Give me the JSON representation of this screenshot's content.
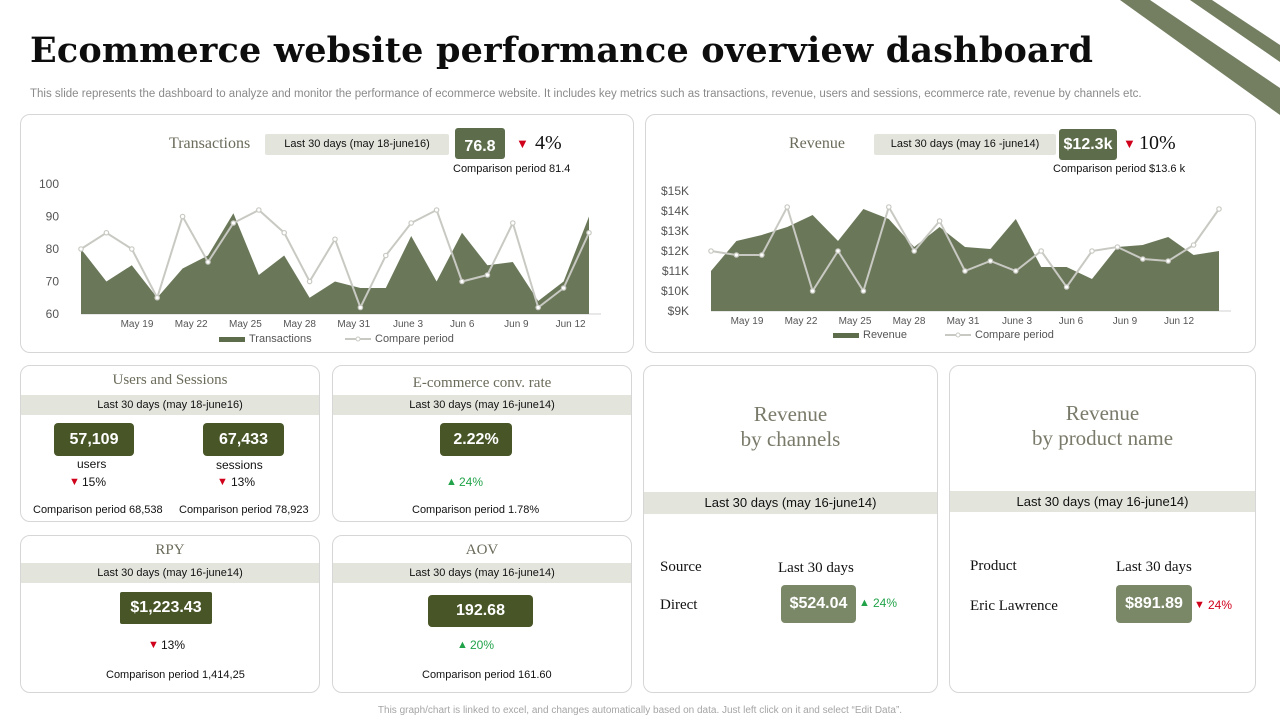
{
  "page": {
    "title": "Ecommerce website performance overview dashboard",
    "subtitle": "This slide represents the dashboard to analyze and monitor the performance of ecommerce website. It includes key metrics such as transactions, revenue, users and sessions, ecommerce rate, revenue by channels etc.",
    "footer": "This graph/chart is linked to excel, and changes automatically based on data. Just left click on it and select “Edit Data”."
  },
  "colors": {
    "accent": "#5d6d4b",
    "dark": "#475527",
    "compare": "#c9c9c3",
    "down": "#d0021b",
    "up": "#22a34a"
  },
  "transactions": {
    "title": "Transactions",
    "period": "Last 30 days (may 18-june16)",
    "value": "76.8",
    "change": "4%",
    "comparison": "Comparison period 81.4"
  },
  "revenue": {
    "title": "Revenue",
    "period": "Last 30 days (may 16 -june14)",
    "value": "$12.3k",
    "change": "10%",
    "comparison": "Comparison period $13.6 k"
  },
  "users_sessions": {
    "title": "Users and Sessions",
    "period": "Last 30 days (may 18-june16)",
    "users_value": "57,109",
    "users_label": "users",
    "users_change": "15%",
    "users_comparison": "Comparison period 68,538",
    "sessions_value": "67,433",
    "sessions_label": "sessions",
    "sessions_change": "13%",
    "sessions_comparison": "Comparison period 78,923"
  },
  "conv_rate": {
    "title": "E-commerce conv. rate",
    "period": "Last 30 days (may 16-june14)",
    "value": "2.22%",
    "change": "24%",
    "comparison": "Comparison period 1.78%"
  },
  "rpy": {
    "title": "RPY",
    "period": "Last 30 days (may 16-june14)",
    "value": "$1,223.43",
    "change": "13%",
    "comparison": "Comparison period 1,414,25"
  },
  "aov": {
    "title": "AOV",
    "period": "Last 30 days (may 16-june14)",
    "value": "192.68",
    "change": "20%",
    "comparison": "Comparison period 161.60"
  },
  "channels": {
    "title_line1": "Revenue",
    "title_line2": "by channels",
    "period": "Last 30 days (may 16-june14)",
    "col1": "Source",
    "col2": "Last 30 days",
    "row_label": "Direct",
    "row_value": "$524.04",
    "row_change": "24%"
  },
  "products": {
    "title_line1": "Revenue",
    "title_line2": "by product name",
    "period": "Last 30 days (may 16-june14)",
    "col1": "Product",
    "col2": "Last 30 days",
    "row_label": "Eric Lawrence",
    "row_value": "$891.89",
    "row_change": "24%"
  },
  "chart_data": [
    {
      "type": "area",
      "title": "Transactions",
      "x_ticks": [
        "May 19",
        "May 22",
        "May 25",
        "May 28",
        "May 31",
        "June 3",
        "Jun 6",
        "Jun 9",
        "Jun 12"
      ],
      "y_ticks": [
        "60",
        "70",
        "80",
        "90",
        "100"
      ],
      "ylim": [
        60,
        100
      ],
      "series": [
        {
          "name": "Transactions",
          "kind": "area",
          "values": [
            80,
            70,
            75,
            65,
            74,
            78,
            91,
            72,
            78,
            65,
            70,
            68,
            68,
            84,
            70,
            85,
            75,
            76,
            64,
            70,
            90
          ]
        },
        {
          "name": "Compare period",
          "kind": "line",
          "values": [
            80,
            85,
            80,
            65,
            90,
            76,
            88,
            92,
            85,
            70,
            83,
            62,
            78,
            88,
            92,
            70,
            72,
            88,
            62,
            68,
            85
          ]
        }
      ]
    },
    {
      "type": "area",
      "title": "Revenue",
      "x_ticks": [
        "May 19",
        "May 22",
        "May 25",
        "May 28",
        "May 31",
        "June 3",
        "Jun 6",
        "Jun 9",
        "Jun 12"
      ],
      "y_ticks": [
        "$9K",
        "$10K",
        "$11K",
        "$12K",
        "$13K",
        "$14K",
        "$15K"
      ],
      "ylim": [
        9,
        15
      ],
      "series": [
        {
          "name": "Revenue",
          "kind": "area",
          "values": [
            11,
            12.5,
            12.8,
            13.2,
            13.8,
            12.5,
            14.1,
            13.6,
            12.2,
            13.2,
            12.2,
            12.1,
            13.6,
            11.2,
            11.2,
            10.6,
            12.2,
            12.3,
            12.7,
            11.8,
            12.0
          ]
        },
        {
          "name": "Compare period",
          "kind": "line",
          "values": [
            12,
            11.8,
            11.8,
            14.2,
            10,
            12,
            10,
            14.2,
            12,
            13.5,
            11,
            11.5,
            11,
            12,
            10.2,
            12,
            12.2,
            11.6,
            11.5,
            12.3,
            14.1
          ]
        }
      ]
    }
  ]
}
